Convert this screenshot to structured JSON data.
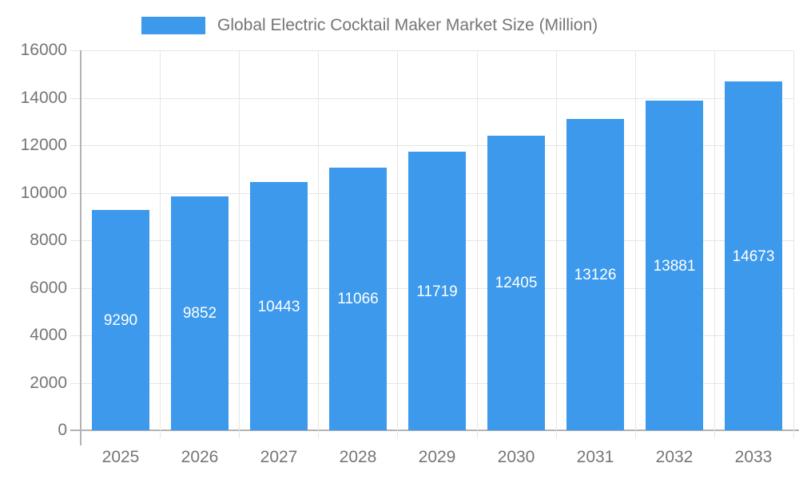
{
  "chart_data": {
    "type": "bar",
    "title": "Global Electric Cocktail Maker Market Size (Million)",
    "legend": [
      "Global Electric Cocktail Maker Market Size (Million)"
    ],
    "legend_position": "top",
    "categories": [
      "2025",
      "2026",
      "2027",
      "2028",
      "2029",
      "2030",
      "2031",
      "2032",
      "2033"
    ],
    "series": [
      {
        "name": "Global Electric Cocktail Maker Market Size (Million)",
        "values": [
          9290,
          9852,
          10443,
          11066,
          11719,
          12405,
          13126,
          13881,
          14673
        ]
      }
    ],
    "value_labels": [
      "9290",
      "9852",
      "10443",
      "11066",
      "11719",
      "12405",
      "13126",
      "13881",
      "14673"
    ],
    "value_label_position": "inside-center",
    "xlabel": "",
    "ylabel": "",
    "ylim": [
      0,
      16000
    ],
    "ytick_step": 2000,
    "ytick_labels": [
      "0",
      "2000",
      "4000",
      "6000",
      "8000",
      "10000",
      "12000",
      "14000",
      "16000"
    ],
    "grid": "on",
    "colors": {
      "bar": "#3D99EC",
      "value_label_text": "#ffffff",
      "axis_line": "#b3b3b3",
      "grid_line": "#e6e6e6",
      "tick_text": "#757575",
      "legend_text": "#757575",
      "background": "#ffffff"
    }
  }
}
